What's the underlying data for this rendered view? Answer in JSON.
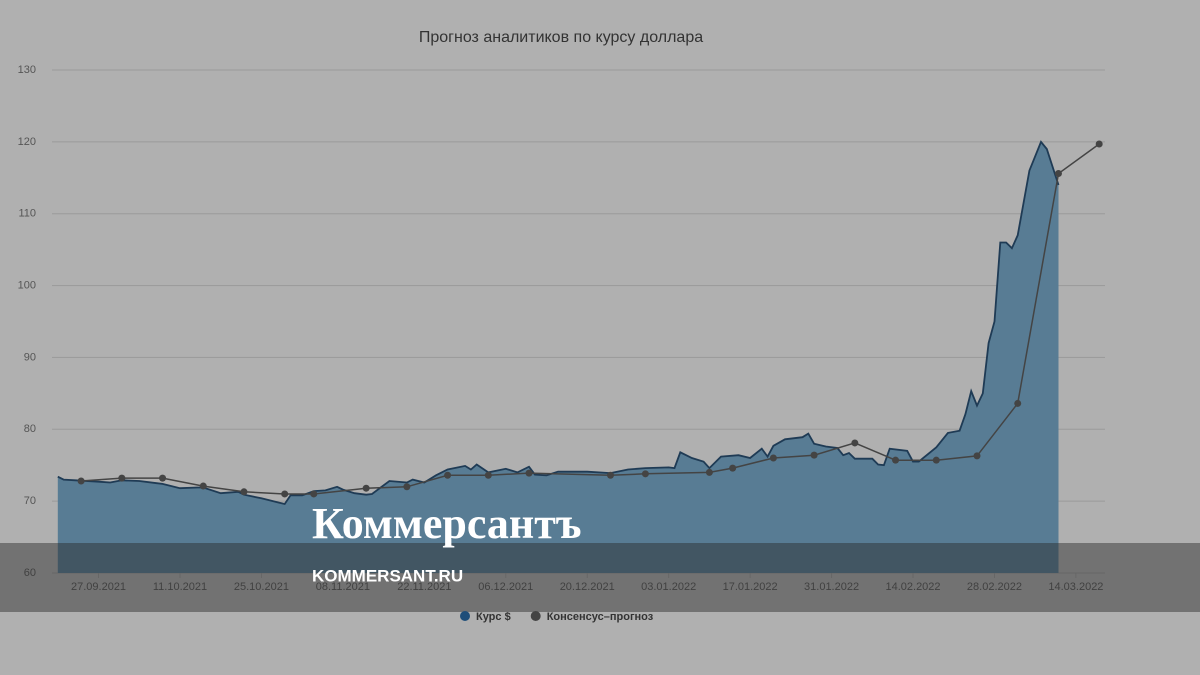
{
  "chart_data": {
    "type": "area-line",
    "title": "Прогноз аналитиков по курсу доллара",
    "xlim": [
      "19.09.2021",
      "19.03.2022"
    ],
    "xticks": [
      "27.09.2021",
      "11.10.2021",
      "25.10.2021",
      "08.11.2021",
      "22.11.2021",
      "06.12.2021",
      "20.12.2021",
      "03.01.2022",
      "17.01.2022",
      "31.01.2022",
      "14.02.2022",
      "28.02.2022",
      "14.03.2022"
    ],
    "ylim": [
      60,
      130
    ],
    "yticks": [
      60,
      70,
      80,
      90,
      100,
      110,
      120,
      130
    ],
    "grid": true,
    "legend": "bottom",
    "series": [
      {
        "name": "Курс $",
        "type": "area",
        "color": "#1f3b55",
        "fill": "#587c94",
        "x": [
          "20.09.2021",
          "21.09.2021",
          "23.09.2021",
          "27.09.2021",
          "29.09.2021",
          "01.10.2021",
          "04.10.2021",
          "07.10.2021",
          "08.10.2021",
          "11.10.2021",
          "14.10.2021",
          "15.10.2021",
          "18.10.2021",
          "21.10.2021",
          "22.10.2021",
          "25.10.2021",
          "28.10.2021",
          "29.10.2021",
          "30.10.2021",
          "01.11.2021",
          "03.11.2021",
          "05.11.2021",
          "07.11.2021",
          "08.11.2021",
          "10.11.2021",
          "12.11.2021",
          "13.11.2021",
          "16.11.2021",
          "19.11.2021",
          "20.11.2021",
          "22.11.2021",
          "24.11.2021",
          "26.11.2021",
          "29.11.2021",
          "30.11.2021",
          "01.12.2021",
          "03.12.2021",
          "06.12.2021",
          "08.12.2021",
          "10.12.2021",
          "11.12.2021",
          "13.12.2021",
          "15.12.2021",
          "20.12.2021",
          "24.12.2021",
          "27.12.2021",
          "30.12.2021",
          "03.01.2022",
          "04.01.2022",
          "05.01.2022",
          "07.01.2022",
          "09.01.2022",
          "10.01.2022",
          "12.01.2022",
          "15.01.2022",
          "17.01.2022",
          "19.01.2022",
          "20.01.2022",
          "21.01.2022",
          "23.01.2022",
          "26.01.2022",
          "27.01.2022",
          "28.01.2022",
          "30.01.2022",
          "01.02.2022",
          "02.02.2022",
          "03.02.2022",
          "04.02.2022",
          "07.02.2022",
          "08.02.2022",
          "09.02.2022",
          "10.02.2022",
          "13.02.2022",
          "14.02.2022",
          "15.02.2022",
          "18.02.2022",
          "20.02.2022",
          "22.02.2022",
          "23.02.2022",
          "24.02.2022",
          "25.02.2022",
          "26.02.2022",
          "27.02.2022",
          "28.02.2022",
          "01.03.2022",
          "02.03.2022",
          "03.03.2022",
          "04.03.2022",
          "06.03.2022",
          "08.03.2022",
          "09.03.2022",
          "11.03.2022"
        ],
        "values": [
          73.4,
          73.0,
          72.9,
          72.7,
          72.6,
          72.9,
          72.8,
          72.5,
          72.4,
          71.8,
          71.9,
          71.9,
          71.1,
          71.3,
          70.9,
          70.4,
          69.8,
          69.6,
          70.8,
          70.8,
          71.4,
          71.5,
          72.0,
          71.6,
          71.1,
          70.9,
          71.0,
          72.8,
          72.6,
          73.0,
          72.6,
          73.6,
          74.4,
          74.9,
          74.4,
          75.1,
          74.0,
          74.5,
          74.0,
          74.8,
          73.7,
          73.6,
          74.1,
          74.1,
          73.9,
          74.4,
          74.6,
          74.7,
          74.6,
          76.8,
          76.0,
          75.5,
          74.6,
          76.2,
          76.4,
          76.0,
          77.3,
          76.2,
          77.7,
          78.6,
          78.9,
          79.4,
          78.0,
          77.6,
          77.4,
          76.4,
          76.7,
          75.9,
          75.9,
          75.1,
          75.0,
          77.3,
          77.0,
          75.5,
          75.5,
          77.5,
          79.5,
          79.8,
          82.1,
          85.3,
          83.3,
          85.0,
          92.0,
          95.0,
          106.0,
          106.0,
          105.2,
          107.0,
          116.0,
          120.0,
          119.0,
          114.0
        ]
      },
      {
        "name": "Консенсус–прогноз",
        "type": "line",
        "color": "#444444",
        "x": [
          "24.09.2021",
          "01.10.2021",
          "08.10.2021",
          "15.10.2021",
          "22.10.2021",
          "29.10.2021",
          "03.11.2021",
          "12.11.2021",
          "19.11.2021",
          "26.11.2021",
          "03.12.2021",
          "10.12.2021",
          "24.12.2021",
          "30.12.2021",
          "10.01.2022",
          "14.01.2022",
          "21.01.2022",
          "28.01.2022",
          "04.02.2022",
          "11.02.2022",
          "18.02.2022",
          "25.02.2022",
          "04.03.2022",
          "11.03.2022",
          "18.03.2022"
        ],
        "values": [
          72.8,
          73.2,
          73.2,
          72.1,
          71.3,
          71.0,
          71.0,
          71.8,
          72.0,
          73.6,
          73.6,
          73.9,
          73.6,
          73.8,
          74.0,
          74.6,
          76.0,
          76.4,
          78.1,
          75.7,
          75.7,
          76.3,
          83.6,
          115.6,
          119.7
        ]
      }
    ]
  },
  "watermark": {
    "brand": "Коммерсантъ",
    "site": "KOMMERSANT.RU"
  }
}
